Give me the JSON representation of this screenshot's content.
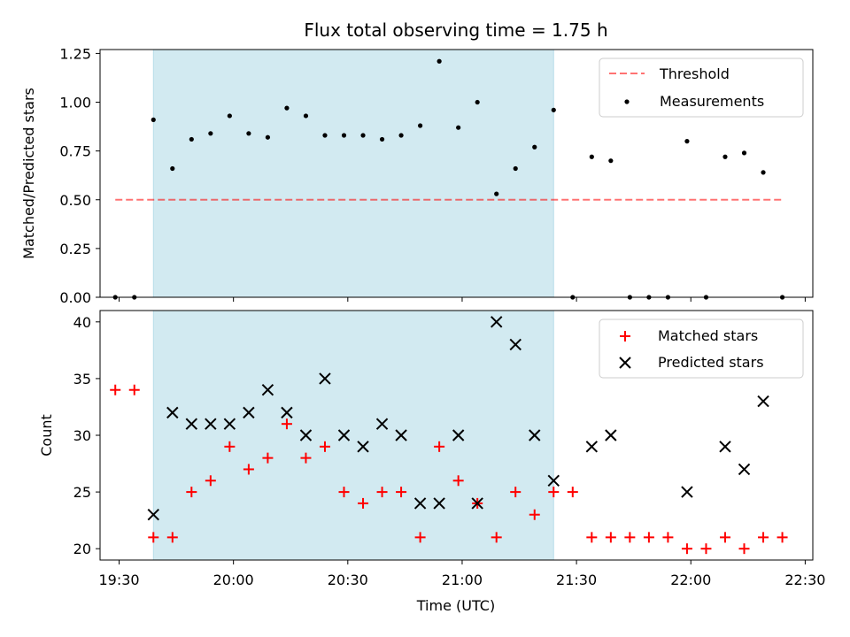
{
  "colors": {
    "shade": "#add8e6",
    "threshold": "#ff0000",
    "measurement": "#000000",
    "matched": "#ff0000",
    "predicted": "#000000"
  },
  "chart_data": [
    {
      "type": "scatter",
      "title": "Flux total observing time = 1.75 h",
      "xlabel": "",
      "ylabel": "Matched/Predicted stars",
      "xlim": [
        "19:25",
        "22:32"
      ],
      "ylim": [
        0,
        1.27
      ],
      "yticks": [
        0.0,
        0.25,
        0.5,
        0.75,
        1.0,
        1.25
      ],
      "ytick_labels": [
        "0.00",
        "0.25",
        "0.50",
        "0.75",
        "1.00",
        "1.25"
      ],
      "shaded_interval": [
        "19:39",
        "21:24"
      ],
      "threshold": {
        "name": "Threshold",
        "y": 0.5,
        "x_from": "19:29",
        "x_to": "22:24"
      },
      "legend_position": "upper right",
      "series": [
        {
          "name": "Measurements",
          "x": [
            "19:29",
            "19:34",
            "19:39",
            "19:44",
            "19:49",
            "19:54",
            "19:59",
            "20:04",
            "20:09",
            "20:14",
            "20:19",
            "20:24",
            "20:29",
            "20:34",
            "20:39",
            "20:44",
            "20:49",
            "20:54",
            "20:59",
            "21:04",
            "21:09",
            "21:14",
            "21:19",
            "21:24",
            "21:29",
            "21:34",
            "21:39",
            "21:44",
            "21:49",
            "21:54",
            "21:59",
            "22:04",
            "22:09",
            "22:14",
            "22:19",
            "22:24"
          ],
          "y": [
            0,
            0,
            0.91,
            0.66,
            0.81,
            0.84,
            0.93,
            0.84,
            0.82,
            0.97,
            0.93,
            0.83,
            0.83,
            0.83,
            0.81,
            0.83,
            0.88,
            1.21,
            0.87,
            1.0,
            0.53,
            0.66,
            0.77,
            0.96,
            0,
            0.72,
            0.7,
            0,
            0,
            0,
            0.8,
            0,
            0.72,
            0.74,
            0.64,
            0
          ]
        }
      ]
    },
    {
      "type": "scatter",
      "title": "",
      "xlabel": "Time (UTC)",
      "ylabel": "Count",
      "xlim": [
        "19:25",
        "22:32"
      ],
      "ylim": [
        19,
        41
      ],
      "xticks": [
        "19:30",
        "20:00",
        "20:30",
        "21:00",
        "21:30",
        "22:00",
        "22:30"
      ],
      "yticks": [
        20,
        25,
        30,
        35,
        40
      ],
      "ytick_labels": [
        "20",
        "25",
        "30",
        "35",
        "40"
      ],
      "shaded_interval": [
        "19:39",
        "21:24"
      ],
      "legend_position": "upper right",
      "series": [
        {
          "name": "Matched stars",
          "marker": "+",
          "x": [
            "19:29",
            "19:34",
            "19:39",
            "19:44",
            "19:49",
            "19:54",
            "19:59",
            "20:04",
            "20:09",
            "20:14",
            "20:19",
            "20:24",
            "20:29",
            "20:34",
            "20:39",
            "20:44",
            "20:49",
            "20:54",
            "20:59",
            "21:04",
            "21:09",
            "21:14",
            "21:19",
            "21:24",
            "21:29",
            "21:34",
            "21:39",
            "21:44",
            "21:49",
            "21:54",
            "21:59",
            "22:04",
            "22:09",
            "22:14",
            "22:19",
            "22:24"
          ],
          "y": [
            34,
            34,
            21,
            21,
            25,
            26,
            29,
            27,
            28,
            31,
            28,
            29,
            25,
            24,
            25,
            25,
            21,
            29,
            26,
            24,
            21,
            25,
            23,
            25,
            25,
            21,
            21,
            21,
            21,
            21,
            20,
            20,
            21,
            20,
            21,
            21
          ]
        },
        {
          "name": "Predicted stars",
          "marker": "x",
          "x": [
            "19:39",
            "19:44",
            "19:49",
            "19:54",
            "19:59",
            "20:04",
            "20:09",
            "20:14",
            "20:19",
            "20:24",
            "20:29",
            "20:34",
            "20:39",
            "20:44",
            "20:49",
            "20:54",
            "20:59",
            "21:04",
            "21:09",
            "21:14",
            "21:19",
            "21:24",
            "21:34",
            "21:39",
            "21:59",
            "22:09",
            "22:14",
            "22:19"
          ],
          "y": [
            23,
            32,
            31,
            31,
            31,
            32,
            34,
            32,
            30,
            35,
            30,
            29,
            31,
            30,
            24,
            24,
            30,
            24,
            40,
            38,
            30,
            26,
            29,
            30,
            25,
            29,
            27,
            33
          ]
        }
      ]
    }
  ]
}
